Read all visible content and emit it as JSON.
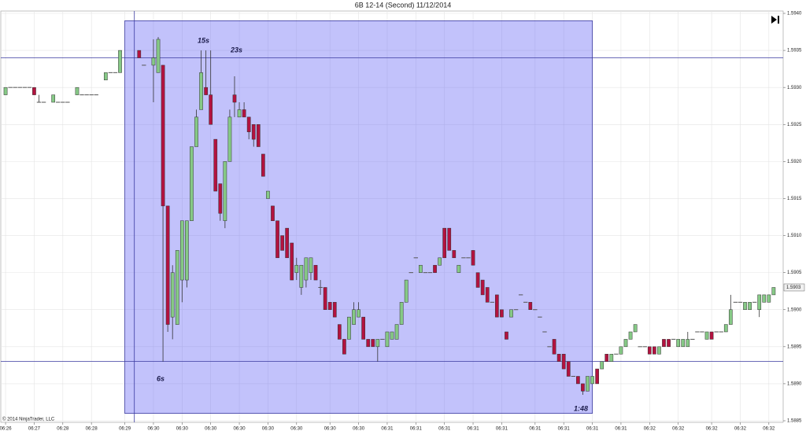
{
  "chart_data": {
    "type": "candlestick",
    "title": "6B 12-14 (Second)  11/12/2014",
    "copyright": "© 2014 NinjaTrader, LLC",
    "annotations": [
      "15s",
      "23s",
      "6s",
      "1:48"
    ],
    "last_price": 1.5903,
    "up_color": "#86c986",
    "down_color": "#b3123f",
    "flat_color": "#555555",
    "grid": true,
    "ylim": [
      1.5885,
      1.594
    ],
    "yticks": [
      {
        "value": 1.594,
        "label": "1.5940"
      },
      1.5935,
      {
        "value": 1.593,
        "label": "1.5930"
      },
      1.5925,
      {
        "value": 1.592,
        "label": "1.5920"
      },
      1.5915,
      {
        "value": 1.591,
        "label": "1.5910"
      },
      1.5905,
      {
        "value": 1.59,
        "label": "1.5900"
      },
      1.5895,
      {
        "value": 1.589,
        "label": "1.5890"
      },
      1.5885
    ],
    "xlim": [
      -1,
      163
    ],
    "xticks": [
      {
        "value": 0,
        "label": "06:26"
      },
      {
        "value": 6,
        "label": "06:27"
      },
      {
        "value": 12,
        "label": "06:28"
      },
      {
        "value": 18,
        "label": "06:28"
      },
      {
        "value": 25,
        "label": "06:29"
      },
      {
        "value": 31,
        "label": "06:30"
      },
      {
        "value": 37,
        "label": "06:30"
      },
      {
        "value": 43,
        "label": "06:30"
      },
      {
        "value": 49,
        "label": "06:30"
      },
      {
        "value": 55,
        "label": "06:30"
      },
      {
        "value": 61,
        "label": "06:30"
      },
      {
        "value": 68,
        "label": "06:30"
      },
      {
        "value": 74,
        "label": "06:30"
      },
      {
        "value": 80,
        "label": "06:31"
      },
      {
        "value": 86,
        "label": "06:31"
      },
      {
        "value": 92,
        "label": "06:31"
      },
      {
        "value": 98,
        "label": "06:31"
      },
      {
        "value": 104,
        "label": "06:31"
      },
      {
        "value": 111,
        "label": "06:31"
      },
      {
        "value": 117,
        "label": "06:31"
      },
      {
        "value": 123,
        "label": "06:31"
      },
      {
        "value": 129,
        "label": "06:31"
      },
      {
        "value": 135,
        "label": "06:32"
      },
      {
        "value": 141,
        "label": "06:32"
      },
      {
        "value": 148,
        "label": "06:32"
      },
      {
        "value": 154,
        "label": "06:32"
      },
      {
        "value": 160,
        "label": "06:32"
      }
    ],
    "hlines": [
      1.5934,
      1.5893
    ],
    "vline": 27,
    "rect": {
      "x": [
        25,
        123
      ],
      "y": [
        1.5886,
        1.5939
      ]
    },
    "x": [
      0,
      1,
      2,
      3,
      4,
      5,
      6,
      7,
      8,
      10,
      11,
      12,
      13,
      15,
      16,
      17,
      18,
      19,
      21,
      22,
      23,
      24,
      28,
      29,
      31,
      32,
      33,
      34,
      35,
      36,
      37,
      38,
      39,
      40,
      41,
      42,
      43,
      44,
      45,
      46,
      47,
      48,
      49,
      50,
      51,
      52,
      53,
      54,
      55,
      56,
      57,
      58,
      59,
      60,
      61,
      62,
      63,
      64,
      65,
      66,
      67,
      68,
      69,
      70,
      71,
      72,
      73,
      74,
      75,
      76,
      77,
      78,
      79,
      80,
      81,
      82,
      83,
      84,
      85,
      86,
      87,
      88,
      89,
      90,
      91,
      92,
      93,
      94,
      95,
      96,
      97,
      98,
      99,
      100,
      101,
      102,
      103,
      104,
      105,
      106,
      107,
      108,
      109,
      110,
      111,
      112,
      113,
      114,
      115,
      116,
      117,
      118,
      119,
      120,
      121,
      122,
      123,
      124,
      125,
      126,
      127,
      128,
      129,
      130,
      131,
      132,
      133,
      134,
      135,
      136,
      137,
      138,
      139,
      140,
      141,
      142,
      143,
      144,
      145,
      146,
      147,
      148,
      149,
      150,
      151,
      152,
      153,
      154,
      155,
      156,
      157,
      158,
      159,
      160,
      161
    ],
    "ohlc": [
      [
        1.5929,
        1.593,
        1.5929,
        1.593
      ],
      [
        1.593,
        1.593,
        1.593,
        1.593
      ],
      [
        1.593,
        1.593,
        1.593,
        1.593
      ],
      [
        1.593,
        1.593,
        1.593,
        1.593
      ],
      [
        1.593,
        1.593,
        1.593,
        1.593
      ],
      [
        1.593,
        1.593,
        1.593,
        1.593
      ],
      [
        1.593,
        1.593,
        1.5929,
        1.5929
      ],
      [
        1.5928,
        1.5929,
        1.5928,
        1.5928
      ],
      [
        1.5928,
        1.5928,
        1.5928,
        1.5928
      ],
      [
        1.5928,
        1.5929,
        1.5928,
        1.5929
      ],
      [
        1.5928,
        1.5928,
        1.5928,
        1.5928
      ],
      [
        1.5928,
        1.5928,
        1.5928,
        1.5928
      ],
      [
        1.5928,
        1.5928,
        1.5928,
        1.5928
      ],
      [
        1.5929,
        1.593,
        1.5929,
        1.593
      ],
      [
        1.5929,
        1.5929,
        1.5929,
        1.5929
      ],
      [
        1.5929,
        1.5929,
        1.5929,
        1.5929
      ],
      [
        1.5929,
        1.5929,
        1.5929,
        1.5929
      ],
      [
        1.5929,
        1.5929,
        1.5929,
        1.5929
      ],
      [
        1.5931,
        1.5932,
        1.5931,
        1.5932
      ],
      [
        1.5932,
        1.5932,
        1.5932,
        1.5932
      ],
      [
        1.5932,
        1.5932,
        1.5932,
        1.5932
      ],
      [
        1.5932,
        1.5935,
        1.5932,
        1.5935
      ],
      [
        1.5935,
        1.5935,
        1.5934,
        1.5934
      ],
      [
        1.5933,
        1.5933,
        1.5933,
        1.5933
      ],
      [
        1.5933,
        1.59365,
        1.5928,
        1.5934
      ],
      [
        1.5932,
        1.59368,
        1.5932,
        1.59365
      ],
      [
        1.5933,
        1.5933,
        1.5893,
        1.5914
      ],
      [
        1.5914,
        1.5914,
        1.5897,
        1.5898
      ],
      [
        1.5899,
        1.5906,
        1.5896,
        1.5905
      ],
      [
        1.5898,
        1.5908,
        1.5898,
        1.5908
      ],
      [
        1.5904,
        1.5912,
        1.5901,
        1.5912
      ],
      [
        1.5904,
        1.5912,
        1.5903,
        1.5912
      ],
      [
        1.5912,
        1.5922,
        1.5912,
        1.5922
      ],
      [
        1.5922,
        1.5927,
        1.5922,
        1.5926
      ],
      [
        1.5927,
        1.5935,
        1.5927,
        1.5932
      ],
      [
        1.593,
        1.5935,
        1.5929,
        1.5929
      ],
      [
        1.5929,
        1.5935,
        1.5925,
        1.5925
      ],
      [
        1.5923,
        1.5923,
        1.5916,
        1.5916
      ],
      [
        1.5917,
        1.5917,
        1.5912,
        1.5913
      ],
      [
        1.5912,
        1.592,
        1.5911,
        1.592
      ],
      [
        1.592,
        1.5927,
        1.592,
        1.5926
      ],
      [
        1.5929,
        1.59315,
        1.5926,
        1.5928
      ],
      [
        1.5926,
        1.5928,
        1.5926,
        1.5927
      ],
      [
        1.5927,
        1.5928,
        1.5926,
        1.5926
      ],
      [
        1.5926,
        1.5926,
        1.5923,
        1.5924
      ],
      [
        1.5925,
        1.5925,
        1.5922,
        1.5923
      ],
      [
        1.5925,
        1.5925,
        1.5922,
        1.5922
      ],
      [
        1.5921,
        1.5921,
        1.5918,
        1.5918
      ],
      [
        1.5915,
        1.5916,
        1.5915,
        1.5916
      ],
      [
        1.5914,
        1.5914,
        1.5912,
        1.5912
      ],
      [
        1.5912,
        1.5912,
        1.5907,
        1.5907
      ],
      [
        1.591,
        1.591,
        1.5908,
        1.5908
      ],
      [
        1.5911,
        1.5911,
        1.5907,
        1.5907
      ],
      [
        1.5909,
        1.5909,
        1.5904,
        1.5904
      ],
      [
        1.5905,
        1.5907,
        1.5904,
        1.5906
      ],
      [
        1.5903,
        1.5906,
        1.5902,
        1.5906
      ],
      [
        1.5904,
        1.5907,
        1.5903,
        1.5907
      ],
      [
        1.5905,
        1.5907,
        1.5904,
        1.5907
      ],
      [
        1.5906,
        1.5906,
        1.5904,
        1.5904
      ],
      [
        1.5903,
        1.5904,
        1.5902,
        1.5903
      ],
      [
        1.5903,
        1.5903,
        1.59,
        1.59
      ],
      [
        1.5901,
        1.5901,
        1.59,
        1.59
      ],
      [
        1.5901,
        1.5901,
        1.5899,
        1.5899
      ],
      [
        1.5898,
        1.5898,
        1.5896,
        1.5896
      ],
      [
        1.5896,
        1.5896,
        1.5894,
        1.5894
      ],
      [
        1.5896,
        1.5899,
        1.5896,
        1.5899
      ],
      [
        1.5898,
        1.5901,
        1.5898,
        1.59
      ],
      [
        1.5899,
        1.5901,
        1.5899,
        1.59
      ],
      [
        1.5899,
        1.5899,
        1.5896,
        1.5896
      ],
      [
        1.5896,
        1.5896,
        1.5895,
        1.5895
      ],
      [
        1.5896,
        1.5896,
        1.5895,
        1.5895
      ],
      [
        1.5895,
        1.5896,
        1.5893,
        1.5896
      ],
      [
        1.5896,
        1.5896,
        1.5896,
        1.5896
      ],
      [
        1.5895,
        1.5897,
        1.5895,
        1.5897
      ],
      [
        1.5896,
        1.5897,
        1.5896,
        1.5897
      ],
      [
        1.5896,
        1.5898,
        1.5896,
        1.5898
      ],
      [
        1.5898,
        1.5901,
        1.5898,
        1.5901
      ],
      [
        1.5901,
        1.5904,
        1.5901,
        1.5904
      ],
      [
        1.5905,
        1.5905,
        1.5905,
        1.5905
      ],
      [
        1.5907,
        1.5907,
        1.5907,
        1.5907
      ],
      [
        1.5905,
        1.5906,
        1.5905,
        1.5906
      ],
      [
        1.5905,
        1.5905,
        1.5905,
        1.5905
      ],
      [
        1.5905,
        1.5905,
        1.5905,
        1.5905
      ],
      [
        1.5906,
        1.5906,
        1.5905,
        1.5905
      ],
      [
        1.5906,
        1.5907,
        1.5906,
        1.5907
      ],
      [
        1.5911,
        1.5911,
        1.5907,
        1.5907
      ],
      [
        1.5911,
        1.5911,
        1.5908,
        1.5908
      ],
      [
        1.5908,
        1.5908,
        1.5907,
        1.5907
      ],
      [
        1.5905,
        1.5906,
        1.5905,
        1.5906
      ],
      [
        1.5907,
        1.5907,
        1.5907,
        1.5907
      ],
      [
        1.5907,
        1.5907,
        1.5907,
        1.5907
      ],
      [
        1.5908,
        1.5908,
        1.5906,
        1.5906
      ],
      [
        1.5905,
        1.5905,
        1.5903,
        1.5903
      ],
      [
        1.5904,
        1.5904,
        1.5902,
        1.5902
      ],
      [
        1.5903,
        1.5903,
        1.5901,
        1.5901
      ],
      [
        1.5901,
        1.5901,
        1.5901,
        1.5901
      ],
      [
        1.5902,
        1.5902,
        1.5899,
        1.5899
      ],
      [
        1.59,
        1.59,
        1.5899,
        1.5899
      ],
      [
        1.5897,
        1.5897,
        1.5896,
        1.5896
      ],
      [
        1.5899,
        1.59,
        1.5899,
        1.59
      ],
      [
        1.59,
        1.59,
        1.59,
        1.59
      ],
      [
        1.5902,
        1.5902,
        1.5902,
        1.5902
      ],
      [
        1.5901,
        1.5901,
        1.5901,
        1.5901
      ],
      [
        1.5901,
        1.5901,
        1.59,
        1.59
      ],
      [
        1.59,
        1.59,
        1.59,
        1.59
      ],
      [
        1.5899,
        1.5899,
        1.5899,
        1.5899
      ],
      [
        1.5897,
        1.5897,
        1.5897,
        1.5897
      ],
      [
        1.5895,
        1.5895,
        1.5895,
        1.5895
      ],
      [
        1.5896,
        1.5896,
        1.5894,
        1.5894
      ],
      [
        1.5894,
        1.5894,
        1.5893,
        1.5893
      ],
      [
        1.5894,
        1.5894,
        1.5892,
        1.5892
      ],
      [
        1.5893,
        1.5893,
        1.5891,
        1.5891
      ],
      [
        1.5891,
        1.5891,
        1.5891,
        1.5891
      ],
      [
        1.5891,
        1.5891,
        1.589,
        1.589
      ],
      [
        1.589,
        1.589,
        1.58885,
        1.5889
      ],
      [
        1.5889,
        1.5891,
        1.5889,
        1.5891
      ],
      [
        1.589,
        1.5891,
        1.589,
        1.5891
      ],
      [
        1.5892,
        1.5892,
        1.589,
        1.589
      ],
      [
        1.5892,
        1.5893,
        1.5892,
        1.5893
      ],
      [
        1.5894,
        1.5894,
        1.5893,
        1.5893
      ],
      [
        1.5893,
        1.5894,
        1.5893,
        1.5894
      ],
      [
        1.5894,
        1.5894,
        1.5894,
        1.5894
      ],
      [
        1.5894,
        1.5895,
        1.5894,
        1.5895
      ],
      [
        1.5895,
        1.5896,
        1.5895,
        1.5896
      ],
      [
        1.5896,
        1.5897,
        1.5896,
        1.5897
      ],
      [
        1.5897,
        1.5898,
        1.5897,
        1.5898
      ],
      [
        1.5895,
        1.5895,
        1.5895,
        1.5895
      ],
      [
        1.5895,
        1.5895,
        1.5895,
        1.5895
      ],
      [
        1.5895,
        1.5895,
        1.5894,
        1.5894
      ],
      [
        1.5895,
        1.5895,
        1.5894,
        1.5894
      ],
      [
        1.5894,
        1.5895,
        1.5894,
        1.5895
      ],
      [
        1.5896,
        1.5896,
        1.5895,
        1.5895
      ],
      [
        1.5896,
        1.5896,
        1.5895,
        1.5895
      ],
      [
        1.5896,
        1.5896,
        1.5896,
        1.5896
      ],
      [
        1.5895,
        1.5896,
        1.5895,
        1.5896
      ],
      [
        1.5895,
        1.5896,
        1.5895,
        1.5896
      ],
      [
        1.5895,
        1.5897,
        1.5895,
        1.5896
      ],
      [
        1.5896,
        1.5896,
        1.5896,
        1.5896
      ],
      [
        1.5897,
        1.5897,
        1.5897,
        1.5897
      ],
      [
        1.5897,
        1.5897,
        1.5897,
        1.5897
      ],
      [
        1.5896,
        1.5897,
        1.5896,
        1.5897
      ],
      [
        1.5897,
        1.5897,
        1.5896,
        1.5896
      ],
      [
        1.5897,
        1.5897,
        1.5897,
        1.5897
      ],
      [
        1.5897,
        1.5897,
        1.5897,
        1.5897
      ],
      [
        1.5897,
        1.5898,
        1.5897,
        1.5898
      ],
      [
        1.5898,
        1.5902,
        1.5898,
        1.59
      ],
      [
        1.5901,
        1.5901,
        1.5901,
        1.5901
      ],
      [
        1.5901,
        1.5901,
        1.5901,
        1.5901
      ],
      [
        1.59,
        1.5901,
        1.59,
        1.5901
      ],
      [
        1.59,
        1.5901,
        1.59,
        1.5901
      ],
      [
        1.5901,
        1.5901,
        1.5901,
        1.5901
      ],
      [
        1.59,
        1.5902,
        1.5899,
        1.5902
      ],
      [
        1.5901,
        1.5902,
        1.5901,
        1.5902
      ],
      [
        1.5901,
        1.5902,
        1.5901,
        1.5902
      ],
      [
        1.5902,
        1.5903,
        1.5902,
        1.5903
      ]
    ]
  }
}
